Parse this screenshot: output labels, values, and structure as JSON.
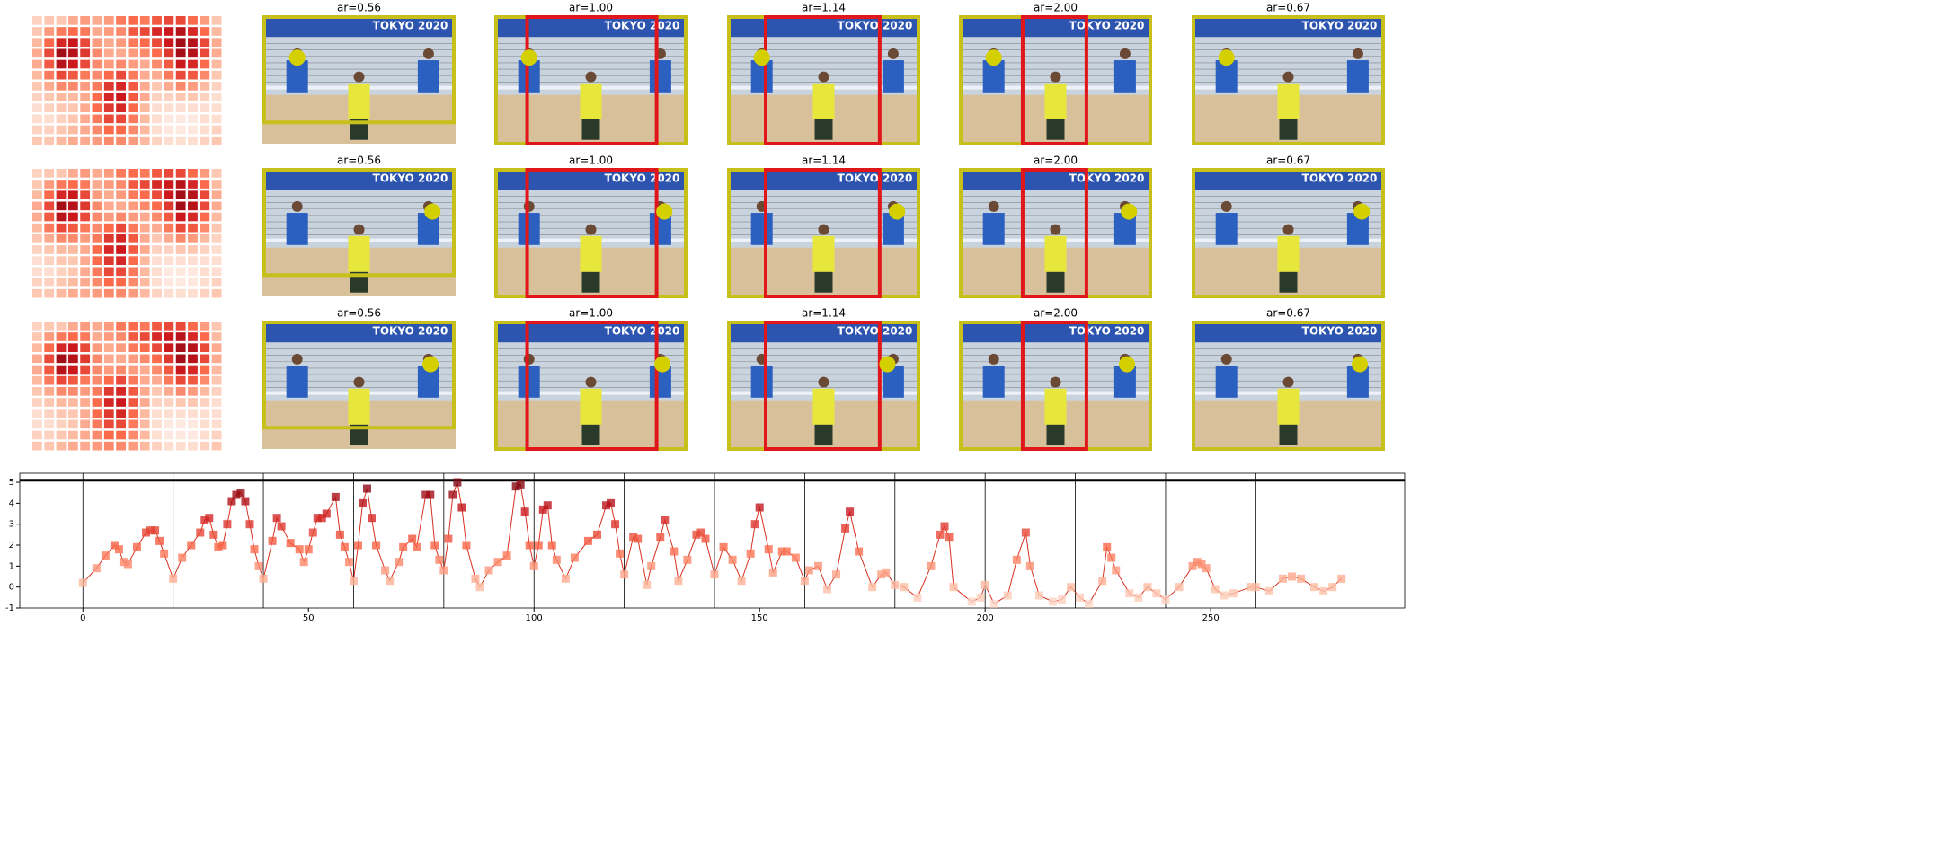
{
  "photo_text": "TOKYO 2020",
  "heatmap": {
    "values": [
      [
        0.15,
        0.2,
        0.2,
        0.3,
        0.35,
        0.3,
        0.35,
        0.45,
        0.5,
        0.45,
        0.55,
        0.6,
        0.6,
        0.5,
        0.35,
        0.2
      ],
      [
        0.2,
        0.35,
        0.45,
        0.5,
        0.45,
        0.3,
        0.35,
        0.4,
        0.55,
        0.6,
        0.7,
        0.75,
        0.8,
        0.7,
        0.5,
        0.25
      ],
      [
        0.25,
        0.5,
        0.7,
        0.75,
        0.6,
        0.35,
        0.3,
        0.35,
        0.45,
        0.5,
        0.6,
        0.75,
        0.85,
        0.8,
        0.6,
        0.3
      ],
      [
        0.3,
        0.6,
        0.85,
        0.8,
        0.65,
        0.4,
        0.3,
        0.3,
        0.35,
        0.4,
        0.5,
        0.65,
        0.85,
        0.8,
        0.6,
        0.3
      ],
      [
        0.3,
        0.55,
        0.8,
        0.75,
        0.6,
        0.4,
        0.35,
        0.4,
        0.35,
        0.3,
        0.4,
        0.55,
        0.75,
        0.7,
        0.5,
        0.25
      ],
      [
        0.25,
        0.45,
        0.6,
        0.55,
        0.45,
        0.4,
        0.5,
        0.6,
        0.45,
        0.3,
        0.3,
        0.45,
        0.6,
        0.55,
        0.4,
        0.2
      ],
      [
        0.2,
        0.3,
        0.4,
        0.4,
        0.35,
        0.45,
        0.65,
        0.7,
        0.55,
        0.3,
        0.2,
        0.3,
        0.4,
        0.35,
        0.25,
        0.15
      ],
      [
        0.15,
        0.2,
        0.25,
        0.25,
        0.3,
        0.5,
        0.7,
        0.75,
        0.55,
        0.3,
        0.15,
        0.15,
        0.2,
        0.2,
        0.15,
        0.1
      ],
      [
        0.1,
        0.15,
        0.2,
        0.2,
        0.3,
        0.5,
        0.65,
        0.7,
        0.5,
        0.25,
        0.1,
        0.1,
        0.1,
        0.1,
        0.1,
        0.1
      ],
      [
        0.1,
        0.1,
        0.15,
        0.2,
        0.3,
        0.45,
        0.6,
        0.6,
        0.45,
        0.25,
        0.1,
        0.05,
        0.05,
        0.05,
        0.1,
        0.1
      ],
      [
        0.15,
        0.15,
        0.2,
        0.25,
        0.3,
        0.4,
        0.5,
        0.5,
        0.4,
        0.25,
        0.1,
        0.05,
        0.05,
        0.05,
        0.1,
        0.15
      ],
      [
        0.2,
        0.2,
        0.25,
        0.3,
        0.3,
        0.35,
        0.4,
        0.4,
        0.35,
        0.25,
        0.15,
        0.1,
        0.1,
        0.1,
        0.15,
        0.2
      ]
    ]
  },
  "panels": [
    {
      "titles": [
        "ar=0.56",
        "ar=1.00",
        "ar=1.14",
        "ar=2.00",
        "ar=0.67"
      ]
    },
    {
      "titles": [
        "ar=0.56",
        "ar=1.00",
        "ar=1.14",
        "ar=2.00",
        "ar=0.67"
      ]
    },
    {
      "titles": [
        "ar=0.56",
        "ar=1.00",
        "ar=1.14",
        "ar=2.00",
        "ar=0.67"
      ]
    }
  ],
  "chart_data": {
    "type": "line",
    "color": "#d7301f",
    "x": [
      0,
      3,
      5,
      7,
      8,
      9,
      10,
      12,
      14,
      15,
      16,
      17,
      18,
      20,
      22,
      24,
      26,
      27,
      28,
      29,
      30,
      31,
      32,
      33,
      34,
      35,
      36,
      37,
      38,
      39,
      40,
      42,
      43,
      44,
      46,
      48,
      49,
      50,
      51,
      52,
      53,
      54,
      56,
      57,
      58,
      59,
      60,
      61,
      62,
      63,
      64,
      65,
      67,
      68,
      70,
      71,
      73,
      74,
      76,
      77,
      78,
      79,
      80,
      81,
      82,
      83,
      84,
      85,
      87,
      88,
      90,
      92,
      94,
      96,
      97,
      98,
      99,
      100,
      101,
      102,
      103,
      104,
      105,
      107,
      109,
      112,
      114,
      116,
      117,
      118,
      119,
      120,
      122,
      123,
      125,
      126,
      128,
      129,
      131,
      132,
      134,
      136,
      137,
      138,
      140,
      142,
      144,
      146,
      148,
      149,
      150,
      152,
      153,
      155,
      156,
      158,
      160,
      161,
      163,
      165,
      167,
      169,
      170,
      172,
      175,
      177,
      178,
      180,
      182,
      185,
      188,
      190,
      191,
      192,
      193,
      197,
      199,
      200,
      202,
      205,
      207,
      209,
      210,
      212,
      215,
      217,
      219,
      221,
      223,
      226,
      227,
      228,
      229,
      232,
      234,
      236,
      238,
      240,
      243,
      246,
      247,
      248,
      249,
      251,
      253,
      255,
      259,
      260,
      263,
      266,
      268,
      270,
      273,
      275,
      277,
      279
    ],
    "values": [
      0.2,
      0.9,
      1.5,
      2.0,
      1.8,
      1.2,
      1.1,
      1.9,
      2.6,
      2.7,
      2.7,
      2.2,
      1.6,
      0.4,
      1.4,
      2.0,
      2.6,
      3.2,
      3.3,
      2.5,
      1.9,
      2.0,
      3.0,
      4.1,
      4.4,
      4.5,
      4.1,
      3.0,
      1.8,
      1.0,
      0.4,
      2.2,
      3.3,
      2.9,
      2.1,
      1.8,
      1.2,
      1.8,
      2.6,
      3.3,
      3.3,
      3.5,
      4.3,
      2.5,
      1.9,
      1.2,
      0.3,
      2.0,
      4.0,
      4.7,
      3.3,
      2.0,
      0.8,
      0.3,
      1.2,
      1.9,
      2.3,
      1.9,
      4.4,
      4.4,
      2.0,
      1.3,
      0.8,
      2.3,
      4.4,
      5.0,
      3.8,
      2.0,
      0.4,
      0.0,
      0.8,
      1.2,
      1.5,
      4.8,
      4.9,
      3.6,
      2.0,
      1.0,
      2.0,
      3.7,
      3.9,
      2.0,
      1.3,
      0.4,
      1.4,
      2.2,
      2.5,
      3.9,
      4.0,
      3.0,
      1.6,
      0.6,
      2.4,
      2.3,
      0.1,
      1.0,
      2.4,
      3.2,
      1.7,
      0.3,
      1.3,
      2.5,
      2.6,
      2.3,
      0.6,
      1.9,
      1.3,
      0.3,
      1.6,
      3.0,
      3.8,
      1.8,
      0.7,
      1.7,
      1.7,
      1.4,
      0.3,
      0.8,
      1.0,
      -0.1,
      0.6,
      2.8,
      3.6,
      1.7,
      0.0,
      0.6,
      0.7,
      0.1,
      0.0,
      -0.5,
      1.0,
      2.5,
      2.9,
      2.4,
      0.0,
      -0.7,
      -0.5,
      0.1,
      -0.8,
      -0.4,
      1.3,
      2.6,
      1.0,
      -0.4,
      -0.7,
      -0.6,
      0.0,
      -0.5,
      -0.8,
      0.3,
      1.9,
      1.4,
      0.8,
      -0.3,
      -0.5,
      0.0,
      -0.3,
      -0.6,
      0.0,
      1.0,
      1.2,
      1.1,
      0.9,
      -0.1,
      -0.4,
      -0.3,
      0.0,
      0.0,
      -0.2,
      0.4,
      0.5,
      0.4,
      0.0,
      -0.2,
      0.0,
      0.4
    ],
    "xlim": [
      -14,
      293
    ],
    "ylim": [
      -1,
      5.43
    ],
    "xticks": [
      0,
      50,
      100,
      150,
      200,
      250
    ],
    "yticks": [
      -1,
      0,
      1,
      2,
      3,
      4,
      5
    ],
    "hline": 5.1,
    "vlines": [
      0,
      20,
      40,
      60,
      80,
      100,
      120,
      140,
      160,
      180,
      200,
      220,
      240,
      260
    ]
  }
}
